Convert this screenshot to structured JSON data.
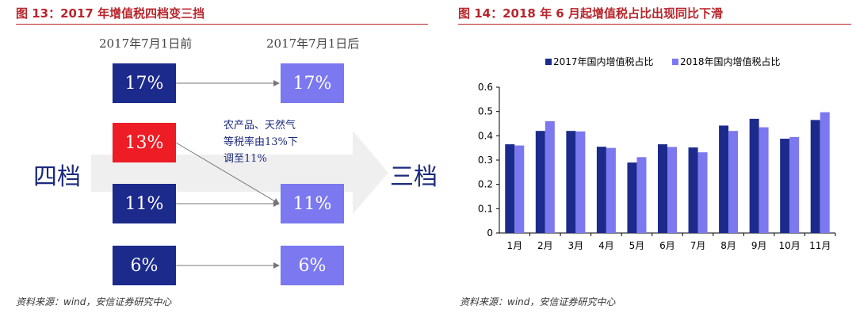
{
  "left_figure": {
    "title": "图 13：2017 年增值税四档变三挡",
    "before_label": "2017年7月1日前",
    "after_label": "2017年7月1日后",
    "from_tier_label": "四档",
    "to_tier_label": "三档",
    "before_rates": [
      "17%",
      "13%",
      "11%",
      "6%"
    ],
    "after_rates": [
      "17%",
      "11%",
      "6%"
    ],
    "note_lines": [
      "农产品、天然气",
      "等税率由13%下",
      "调至11%"
    ],
    "colors": {
      "before_box": "#1c2a8c",
      "after_box": "#7b78f0",
      "highlight": "#ee1c24",
      "band": "#f0f0f0"
    }
  },
  "right_figure": {
    "title": "图 14：2018 年 6 月起增值税占比出现同比下滑"
  },
  "chart_data": {
    "type": "bar",
    "categories": [
      "1月",
      "2月",
      "3月",
      "4月",
      "5月",
      "6月",
      "7月",
      "8月",
      "9月",
      "10月",
      "11月"
    ],
    "series": [
      {
        "name": "2017年国内增值税占比",
        "color": "#1c2a8c",
        "values": [
          0.365,
          0.42,
          0.42,
          0.355,
          0.29,
          0.365,
          0.352,
          0.442,
          0.47,
          0.388,
          0.465
        ]
      },
      {
        "name": "2018年国内增值税占比",
        "color": "#7b78f0",
        "values": [
          0.36,
          0.46,
          0.418,
          0.35,
          0.312,
          0.354,
          0.332,
          0.42,
          0.435,
          0.395,
          0.497
        ]
      }
    ],
    "ylim": [
      0,
      0.6
    ],
    "yticks": [
      "0",
      "0.1",
      "0.2",
      "0.3",
      "0.4",
      "0.5",
      "0.6"
    ],
    "legend_position": "top",
    "grid": false
  },
  "sources": {
    "left": "资料来源：wind，安信证券研究中心",
    "right": "资料来源：wind，安信证券研究中心"
  }
}
